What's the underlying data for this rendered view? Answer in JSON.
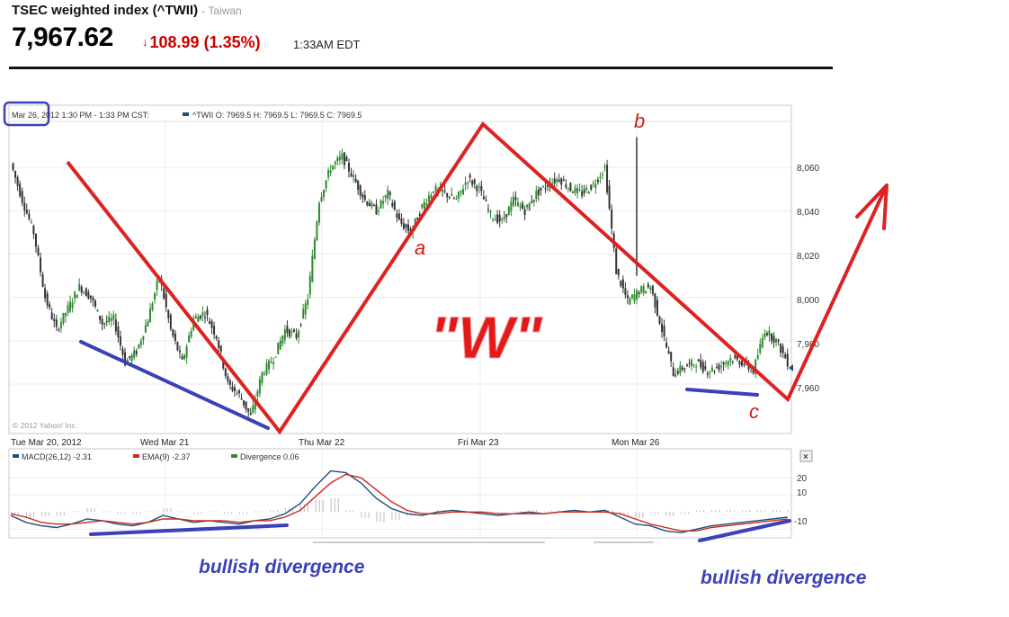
{
  "header": {
    "title": "TSEC weighted index (^TWII)",
    "market": "- Taiwan",
    "price": "7,967.62",
    "change_arrow": "↓",
    "change": "108.99",
    "change_pct": "(1.35%)",
    "time": "1:33AM EDT"
  },
  "colors": {
    "up": "#2e8b2e",
    "down": "#333333",
    "overlay_red": "#dd2222",
    "overlay_blue": "#3b41b8",
    "macd_line": "#1f4e79",
    "ema_line": "#cc2a1a",
    "divergence": "#2e8b2e"
  },
  "chart_data": {
    "type": "candlestick",
    "info_bar": {
      "date": "Mar 26",
      "rest": ", 2012 1:30 PM - 1:33 PM CST:",
      "ohlc": "^TWII O: 7969.5 H: 7969.5 L: 7969.5 C: 7969.5"
    },
    "copyright": "© 2012 Yahoo! Inc.",
    "y_ticks": [
      "8,060",
      "8,040",
      "8,020",
      "8,000",
      "7,980",
      "7,960"
    ],
    "y_tick_values": [
      8060,
      8040,
      8020,
      8000,
      7980,
      7960
    ],
    "ylim": [
      7938,
      8080
    ],
    "x_labels": [
      "Tue Mar 20, 2012",
      "Wed Mar 21",
      "Thu Mar 22",
      "Fri Mar 23",
      "Mon Mar 26"
    ],
    "price_series": [
      [
        0,
        8062
      ],
      [
        3,
        8045
      ],
      [
        6,
        8030
      ],
      [
        9,
        8000
      ],
      [
        12,
        7985
      ],
      [
        15,
        7995
      ],
      [
        18,
        8005
      ],
      [
        21,
        8000
      ],
      [
        24,
        7988
      ],
      [
        27,
        7990
      ],
      [
        30,
        7970
      ],
      [
        33,
        7975
      ],
      [
        36,
        7990
      ],
      [
        39,
        8010
      ],
      [
        42,
        7985
      ],
      [
        45,
        7970
      ],
      [
        48,
        7990
      ],
      [
        51,
        7993
      ],
      [
        54,
        7982
      ],
      [
        57,
        7960
      ],
      [
        60,
        7955
      ],
      [
        63,
        7945
      ],
      [
        66,
        7965
      ],
      [
        69,
        7972
      ],
      [
        72,
        7985
      ],
      [
        75,
        7982
      ],
      [
        78,
        8000
      ],
      [
        81,
        8045
      ],
      [
        84,
        8060
      ],
      [
        87,
        8065
      ],
      [
        90,
        8055
      ],
      [
        93,
        8045
      ],
      [
        96,
        8040
      ],
      [
        99,
        8048
      ],
      [
        102,
        8035
      ],
      [
        105,
        8030
      ],
      [
        108,
        8042
      ],
      [
        111,
        8050
      ],
      [
        114,
        8048
      ],
      [
        117,
        8045
      ],
      [
        120,
        8055
      ],
      [
        123,
        8050
      ],
      [
        126,
        8038
      ],
      [
        129,
        8035
      ],
      [
        132,
        8045
      ],
      [
        135,
        8040
      ],
      [
        138,
        8048
      ],
      [
        141,
        8052
      ],
      [
        144,
        8055
      ],
      [
        147,
        8050
      ],
      [
        150,
        8048
      ],
      [
        153,
        8052
      ],
      [
        156,
        8060
      ],
      [
        159,
        8012
      ],
      [
        162,
        7998
      ],
      [
        165,
        8003
      ],
      [
        168,
        8005
      ],
      [
        171,
        7985
      ],
      [
        174,
        7965
      ],
      [
        177,
        7968
      ],
      [
        180,
        7970
      ],
      [
        183,
        7966
      ],
      [
        186,
        7968
      ],
      [
        189,
        7972
      ],
      [
        192,
        7970
      ],
      [
        195,
        7966
      ],
      [
        198,
        7985
      ],
      [
        201,
        7980
      ],
      [
        204,
        7970
      ]
    ],
    "macd_panel": {
      "legend": [
        {
          "key": "macd",
          "text": "MACD(26,12) -2.31"
        },
        {
          "key": "ema",
          "text": "EMA(9) -2.37"
        },
        {
          "key": "div",
          "text": "Divergence 0.06"
        }
      ],
      "y_ticks": [
        "20",
        "10",
        "-10"
      ],
      "y_tick_values": [
        20,
        10,
        -10
      ],
      "ylim": [
        -14,
        28
      ],
      "macd": [
        [
          0,
          -2
        ],
        [
          4,
          -6
        ],
        [
          8,
          -8
        ],
        [
          12,
          -9
        ],
        [
          16,
          -7
        ],
        [
          20,
          -4
        ],
        [
          24,
          -5
        ],
        [
          28,
          -7
        ],
        [
          32,
          -8
        ],
        [
          36,
          -6
        ],
        [
          40,
          -2
        ],
        [
          44,
          -4
        ],
        [
          48,
          -6
        ],
        [
          52,
          -5
        ],
        [
          56,
          -6
        ],
        [
          60,
          -7
        ],
        [
          64,
          -5
        ],
        [
          68,
          -4
        ],
        [
          72,
          -1
        ],
        [
          76,
          5
        ],
        [
          80,
          15
        ],
        [
          84,
          24
        ],
        [
          88,
          23
        ],
        [
          92,
          17
        ],
        [
          96,
          8
        ],
        [
          100,
          2
        ],
        [
          104,
          -1
        ],
        [
          108,
          -2
        ],
        [
          112,
          0
        ],
        [
          116,
          1
        ],
        [
          120,
          0
        ],
        [
          124,
          -1
        ],
        [
          128,
          -2
        ],
        [
          132,
          -1
        ],
        [
          136,
          0
        ],
        [
          140,
          -1
        ],
        [
          144,
          0
        ],
        [
          148,
          1
        ],
        [
          152,
          0
        ],
        [
          156,
          1
        ],
        [
          160,
          -3
        ],
        [
          164,
          -7
        ],
        [
          168,
          -8
        ],
        [
          172,
          -11
        ],
        [
          176,
          -12
        ],
        [
          180,
          -10
        ],
        [
          184,
          -8
        ],
        [
          188,
          -7
        ],
        [
          192,
          -6
        ],
        [
          196,
          -5
        ],
        [
          200,
          -4
        ],
        [
          204,
          -3
        ]
      ],
      "ema": [
        [
          0,
          -1
        ],
        [
          4,
          -3
        ],
        [
          8,
          -6
        ],
        [
          12,
          -7
        ],
        [
          16,
          -7
        ],
        [
          20,
          -6
        ],
        [
          24,
          -5
        ],
        [
          28,
          -6
        ],
        [
          32,
          -7
        ],
        [
          36,
          -6
        ],
        [
          40,
          -4
        ],
        [
          44,
          -4
        ],
        [
          48,
          -5
        ],
        [
          52,
          -5
        ],
        [
          56,
          -5
        ],
        [
          60,
          -6
        ],
        [
          64,
          -5
        ],
        [
          68,
          -5
        ],
        [
          72,
          -3
        ],
        [
          76,
          1
        ],
        [
          80,
          9
        ],
        [
          84,
          17
        ],
        [
          88,
          22
        ],
        [
          92,
          20
        ],
        [
          96,
          13
        ],
        [
          100,
          6
        ],
        [
          104,
          1
        ],
        [
          108,
          -1
        ],
        [
          112,
          -1
        ],
        [
          116,
          0
        ],
        [
          120,
          0
        ],
        [
          124,
          0
        ],
        [
          128,
          -1
        ],
        [
          132,
          -1
        ],
        [
          136,
          -1
        ],
        [
          140,
          -1
        ],
        [
          144,
          0
        ],
        [
          148,
          0
        ],
        [
          152,
          0
        ],
        [
          156,
          0
        ],
        [
          160,
          -1
        ],
        [
          164,
          -4
        ],
        [
          168,
          -7
        ],
        [
          172,
          -9
        ],
        [
          176,
          -11
        ],
        [
          180,
          -11
        ],
        [
          184,
          -9
        ],
        [
          188,
          -8
        ],
        [
          192,
          -7
        ],
        [
          196,
          -6
        ],
        [
          200,
          -5
        ],
        [
          204,
          -4
        ]
      ]
    },
    "annotations": {
      "pattern_label": "\"W\"",
      "point_a": "a",
      "point_b": "b",
      "point_c": "c",
      "divergence_left": "bullish divergence",
      "divergence_right": "bullish divergence"
    }
  }
}
